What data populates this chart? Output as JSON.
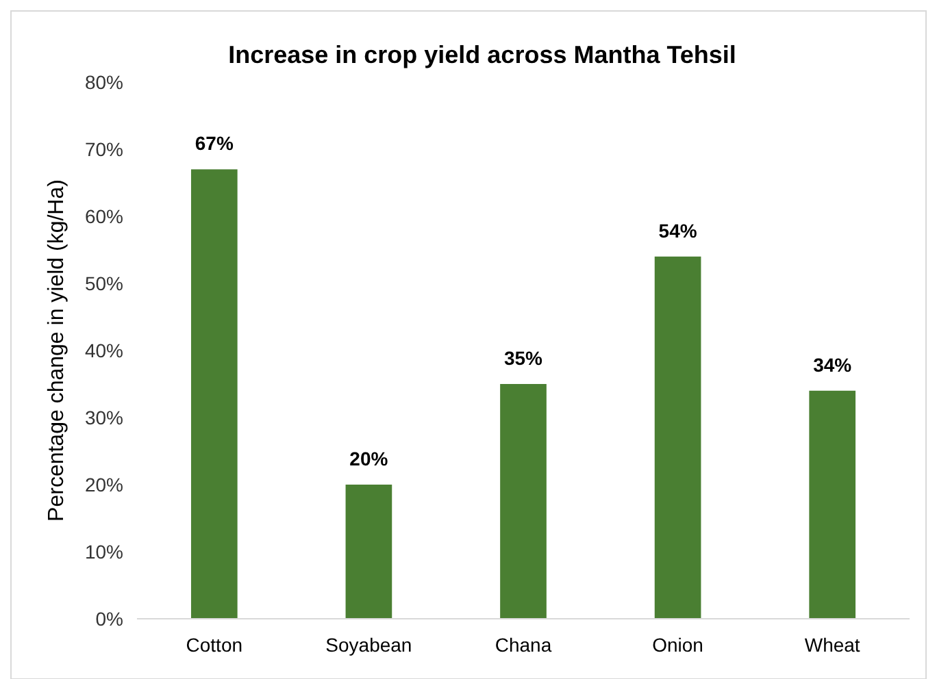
{
  "chart_data": {
    "type": "bar",
    "title": "Increase in crop yield across Mantha Tehsil",
    "ylabel": "Percentage change in yield (kg/Ha)",
    "categories": [
      "Cotton",
      "Soyabean",
      "Chana",
      "Onion",
      "Wheat"
    ],
    "values": [
      67,
      20,
      35,
      54,
      34
    ],
    "value_labels": [
      "67%",
      "20%",
      "35%",
      "54%",
      "34%"
    ],
    "color": "#4a7f32",
    "ylim": [
      0,
      80
    ],
    "yticks": [
      {
        "value": 0,
        "label": "0%"
      },
      {
        "value": 10,
        "label": "10%"
      },
      {
        "value": 20,
        "label": "20%"
      },
      {
        "value": 30,
        "label": "30%"
      },
      {
        "value": 40,
        "label": "40%"
      },
      {
        "value": 50,
        "label": "50%"
      },
      {
        "value": 60,
        "label": "60%"
      },
      {
        "value": 70,
        "label": "70%"
      },
      {
        "value": 80,
        "label": "80%"
      }
    ],
    "grid": false
  }
}
